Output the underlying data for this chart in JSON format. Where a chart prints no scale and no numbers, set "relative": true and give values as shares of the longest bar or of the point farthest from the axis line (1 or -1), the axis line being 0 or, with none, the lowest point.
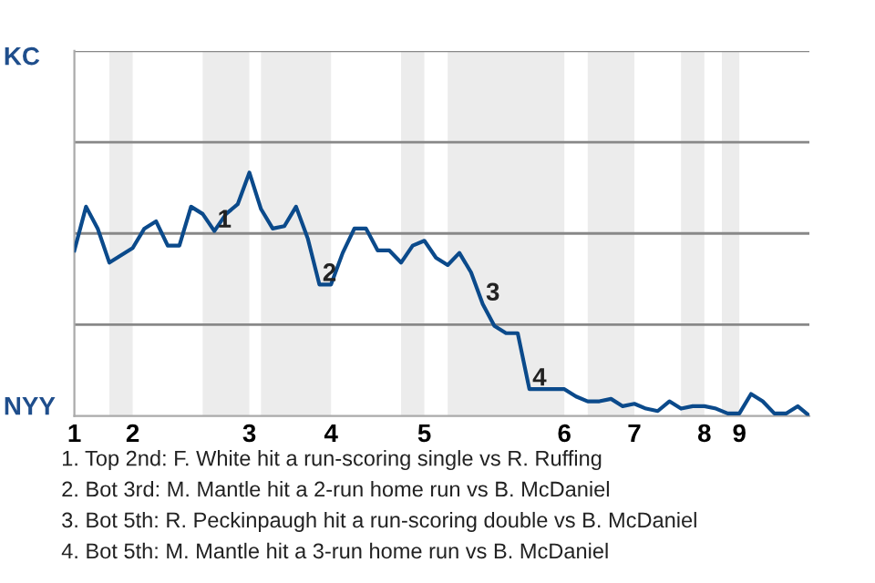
{
  "chart_data": {
    "type": "line",
    "relative": true,
    "categories": [
      "1",
      null,
      null,
      null,
      null,
      "2",
      null,
      null,
      null,
      null,
      null,
      null,
      null,
      null,
      null,
      "3",
      null,
      null,
      null,
      null,
      null,
      null,
      "4",
      null,
      null,
      null,
      null,
      null,
      null,
      null,
      "5",
      null,
      null,
      null,
      null,
      null,
      null,
      null,
      null,
      null,
      null,
      null,
      "6",
      null,
      null,
      null,
      null,
      null,
      "7",
      null,
      null,
      null,
      null,
      null,
      "8",
      null,
      null,
      "9",
      null,
      null,
      null,
      null,
      null,
      null
    ],
    "series": [
      {
        "color": "#0b4a8b",
        "values": [
          0.68,
          0.86,
          0.77,
          0.63,
          0.66,
          0.69,
          0.77,
          0.8,
          0.7,
          0.7,
          0.86,
          0.83,
          0.76,
          0.83,
          0.87,
          1,
          0.85,
          0.77,
          0.78,
          0.86,
          0.73,
          0.54,
          0.54,
          0.67,
          0.77,
          0.77,
          0.68,
          0.68,
          0.63,
          0.7,
          0.72,
          0.65,
          0.62,
          0.67,
          0.59,
          0.46,
          0.37,
          0.34,
          0.34,
          0.11,
          0.11,
          0.11,
          0.11,
          0.08,
          0.06,
          0.06,
          0.07,
          0.04,
          0.05,
          0.03,
          0.02,
          0.06,
          0.03,
          0.04,
          0.04,
          0.03,
          0.01,
          0.01,
          0.09,
          0.06,
          0.01,
          0.01,
          0.04,
          0
        ]
      }
    ],
    "marker": "none",
    "line_style": "solid",
    "ref_lines": [
      {
        "axis": "y",
        "value": 0.375,
        "color": "#888888"
      },
      {
        "axis": "y",
        "value": 0.75,
        "color": "#888888"
      },
      {
        "axis": "y",
        "value": 1.125,
        "color": "#888888"
      },
      {
        "axis": "y",
        "value": 1.5,
        "color": "#888888"
      }
    ],
    "annotations": [
      "KC",
      "NYY",
      {
        "text": "1",
        "y": 0.76
      },
      {
        "text": "2",
        "y": 0.54
      },
      {
        "text": "3",
        "y": 0.46
      },
      {
        "text": "4",
        "y": 0.11
      },
      "1. Top 2nd: F. White hit a run-scoring single vs R. Ruffing",
      "2. Bot 3rd: M. Mantle hit a 2-run home run vs B. McDaniel",
      "3. Bot 5th: R. Peckinpaugh hit a run-scoring double vs B. McDaniel",
      "4. Bot 5th: M. Mantle hit a 3-run home run vs B. McDaniel"
    ]
  }
}
